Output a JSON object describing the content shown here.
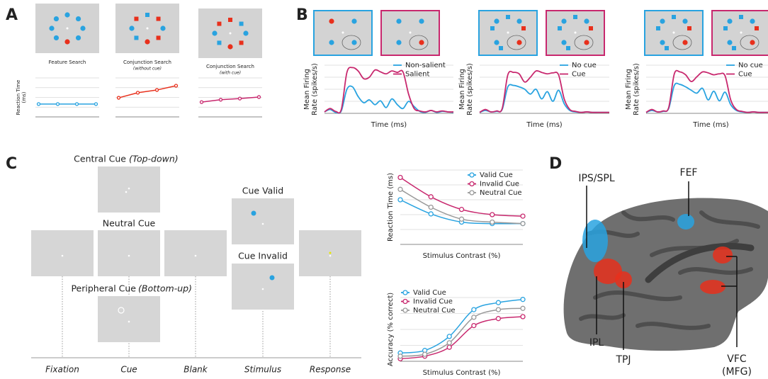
{
  "panels": {
    "A": "A",
    "B": "B",
    "C": "C",
    "D": "D",
    "timeline": {
      "steps": [
        "Fixation",
        "Cue",
        "Blank",
        "Stimulus",
        "Response"
      ],
      "central_cue": [
        "Central Cue",
        "(Top-down)"
      ],
      "neutral_cue": "Neutral Cue",
      "peripheral_cue": [
        "Peripheral Cue",
        "(Bottom-up)"
      ],
      "cue_valid": "Cue Valid",
      "cue_invalid": "Cue Invalid"
    },
    "brain": {
      "regions": [
        "IPS/SPL",
        "FEF",
        "IPL",
        "TPJ",
        "VFC",
        "(MFG)"
      ]
    }
  },
  "chart_data": [
    {
      "type": "line",
      "title": "Feature Search",
      "ylabel": [
        "Reaction Time",
        "(ms)"
      ],
      "values": [
        33,
        33,
        33,
        33
      ],
      "color": "#29a3e0",
      "ylim": [
        0,
        100
      ],
      "grid": true,
      "markers": true,
      "smooth": false
    },
    {
      "type": "line",
      "title": "Conjunction Search",
      "subtitle": "(without cue)",
      "values": [
        49,
        62,
        69,
        80
      ],
      "color": "#e8301c",
      "ylim": [
        0,
        100
      ],
      "grid": true,
      "markers": true,
      "smooth": false
    },
    {
      "type": "line",
      "title": "Conjunction Search",
      "subtitle": "(with cue)",
      "values": [
        38,
        44,
        47,
        51
      ],
      "color": "#c8286e",
      "ylim": [
        0,
        100
      ],
      "grid": true,
      "markers": true,
      "smooth": false
    },
    {
      "type": "line",
      "xlabel": "Time (ms)",
      "ylabel": [
        "Mean Firing",
        "Rate (spikes/s)"
      ],
      "ylim": [
        0,
        100
      ],
      "grid": true,
      "markers": false,
      "smooth": true,
      "legend": "upper right",
      "series": [
        {
          "name": "Non-salient",
          "color": "#29a3e0",
          "values": [
            3,
            8,
            2,
            5,
            50,
            55,
            35,
            22,
            28,
            18,
            26,
            12,
            30,
            18,
            10,
            25,
            14,
            4,
            2,
            6,
            2,
            4,
            3,
            2
          ]
        },
        {
          "name": "Salient",
          "color": "#c8286e",
          "values": [
            3,
            10,
            4,
            8,
            85,
            95,
            88,
            72,
            75,
            90,
            86,
            82,
            88,
            85,
            86,
            40,
            10,
            5,
            3,
            6,
            3,
            5,
            3,
            3
          ]
        }
      ]
    },
    {
      "type": "line",
      "xlabel": "Time (ms)",
      "ylabel": [
        "Mean Firing",
        "Rate (spikes/s)"
      ],
      "ylim": [
        0,
        100
      ],
      "grid": true,
      "markers": false,
      "smooth": true,
      "legend": "upper right",
      "series": [
        {
          "name": "No cue",
          "color": "#29a3e0",
          "values": [
            2,
            6,
            3,
            4,
            8,
            55,
            58,
            55,
            50,
            40,
            50,
            30,
            45,
            25,
            48,
            20,
            6,
            3,
            2,
            3,
            2,
            2,
            2,
            2
          ]
        },
        {
          "name": "Cue",
          "color": "#c8286e",
          "values": [
            2,
            8,
            3,
            5,
            10,
            80,
            85,
            82,
            65,
            75,
            88,
            85,
            82,
            84,
            80,
            30,
            8,
            4,
            2,
            3,
            2,
            2,
            2,
            2
          ]
        }
      ]
    },
    {
      "type": "line",
      "xlabel": "Time (ms)",
      "ylabel": [
        "Mean Firing",
        "Rate (spikes/s)"
      ],
      "ylim": [
        0,
        100
      ],
      "grid": true,
      "markers": false,
      "smooth": true,
      "legend": "upper right",
      "series": [
        {
          "name": "No cue",
          "color": "#29a3e0",
          "values": [
            2,
            6,
            3,
            4,
            10,
            58,
            60,
            55,
            48,
            42,
            52,
            28,
            46,
            26,
            44,
            18,
            6,
            3,
            2,
            3,
            2,
            2,
            2,
            2
          ]
        },
        {
          "name": "Cue",
          "color": "#c8286e",
          "values": [
            2,
            8,
            3,
            5,
            12,
            82,
            86,
            80,
            66,
            76,
            86,
            84,
            80,
            82,
            78,
            28,
            8,
            4,
            2,
            3,
            2,
            2,
            2,
            2
          ]
        }
      ]
    },
    {
      "type": "line",
      "xlabel": "Stimulus Contrast (%)",
      "ylabel": [
        "Reaction Time (ms)"
      ],
      "ylim": [
        0,
        100
      ],
      "grid": true,
      "markers": true,
      "smooth": true,
      "legend": "upper right",
      "series": [
        {
          "name": "Valid Cue",
          "color": "#29a3e0",
          "values": [
            60,
            41,
            30,
            28,
            28
          ]
        },
        {
          "name": "Invalid Cue",
          "color": "#c8286e",
          "values": [
            90,
            64,
            47,
            40,
            38
          ]
        },
        {
          "name": "Neutral Cue",
          "color": "#999999",
          "values": [
            74,
            50,
            34,
            30,
            28
          ]
        }
      ]
    },
    {
      "type": "line",
      "xlabel": "Stimulus Contrast (%)",
      "ylabel": [
        "Accuracy (% correct)"
      ],
      "ylim": [
        0,
        100
      ],
      "grid": true,
      "markers": true,
      "smooth": true,
      "legend": "upper left",
      "series": [
        {
          "name": "Valid Cue",
          "color": "#29a3e0",
          "values": [
            13,
            17,
            39,
            81,
            92,
            97
          ]
        },
        {
          "name": "Invalid Cue",
          "color": "#c8286e",
          "values": [
            4,
            8,
            22,
            56,
            67,
            70
          ]
        },
        {
          "name": "Neutral Cue",
          "color": "#999999",
          "values": [
            8,
            11,
            29,
            69,
            81,
            83
          ]
        }
      ]
    }
  ]
}
